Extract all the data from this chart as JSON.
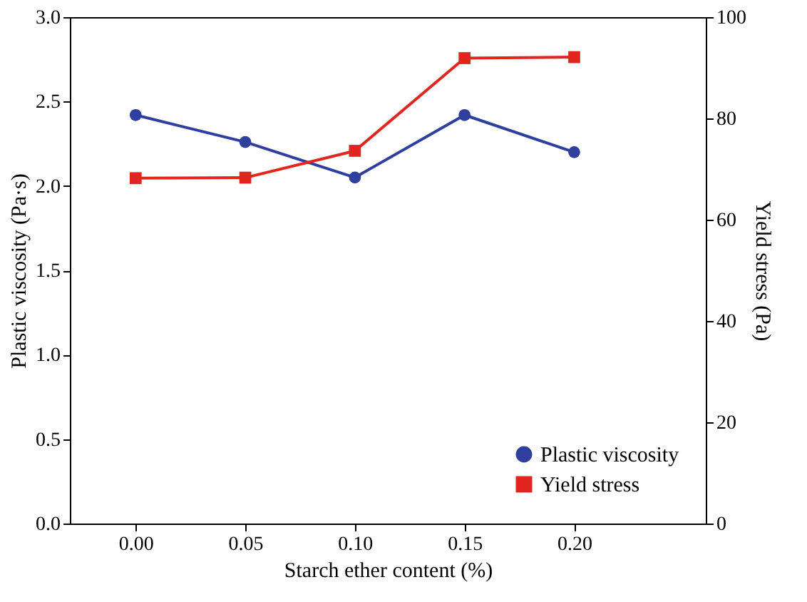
{
  "chart_data": {
    "type": "line",
    "xlabel": "Starch ether content (%)",
    "ylabel": "Plastic viscosity (Pa·s)",
    "y2label": "Yield stress (Pa)",
    "x": [
      0.0,
      0.05,
      0.1,
      0.15,
      0.2
    ],
    "series": [
      {
        "name": "Plastic viscosity",
        "color": "#2e3f9e",
        "marker": "circle",
        "values": [
          2.42,
          2.26,
          2.05,
          2.42,
          2.2
        ]
      },
      {
        "name": "Yield stress",
        "color": "#e0261f",
        "marker": "square",
        "axis": "y2",
        "values": [
          68.2,
          68.3,
          73.6,
          91.9,
          92.1
        ]
      }
    ],
    "xlim": [
      -0.03,
      0.26
    ],
    "xticks": [
      {
        "value": 0,
        "label": "0.00"
      },
      {
        "value": 0.05,
        "label": "0.05"
      },
      {
        "value": 0.1,
        "label": "0.10"
      },
      {
        "value": 0.15,
        "label": "0.15"
      },
      {
        "value": 0.2,
        "label": "0.20"
      }
    ],
    "ylim": [
      0,
      3
    ],
    "yticks": [
      {
        "value": 0,
        "label": "0.0"
      },
      {
        "value": 0.5,
        "label": "0.5"
      },
      {
        "value": 1,
        "label": "1.0"
      },
      {
        "value": 1.5,
        "label": "1.5"
      },
      {
        "value": 2,
        "label": "2.0"
      },
      {
        "value": 2.5,
        "label": "2.5"
      },
      {
        "value": 3,
        "label": "3.0"
      }
    ],
    "y2lim": [
      0,
      100
    ],
    "y2ticks": [
      0,
      20,
      40,
      60,
      80,
      100
    ],
    "grid": false,
    "legend": "bottom right",
    "line_style": "solid"
  }
}
